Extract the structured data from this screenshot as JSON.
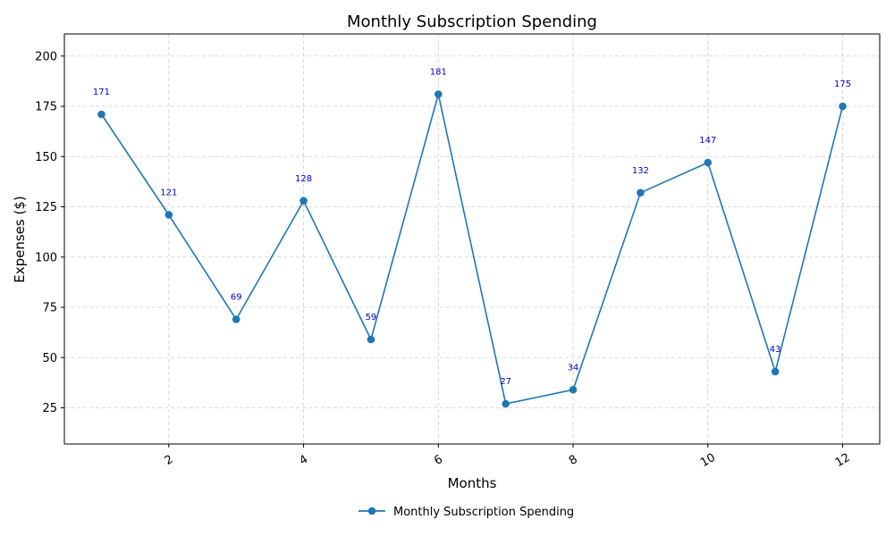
{
  "chart_data": {
    "type": "line",
    "title": "Monthly Subscription Spending",
    "xlabel": "Months",
    "ylabel": "Expenses ($)",
    "x": [
      1,
      2,
      3,
      4,
      5,
      6,
      7,
      8,
      9,
      10,
      11,
      12
    ],
    "series": [
      {
        "name": "Monthly Subscription Spending",
        "values": [
          171,
          121,
          69,
          128,
          59,
          181,
          27,
          34,
          132,
          147,
          43,
          175
        ]
      }
    ],
    "xlim": [
      0.45,
      12.55
    ],
    "ylim": [
      7,
      211
    ],
    "xticks": [
      2,
      4,
      6,
      8,
      10,
      12
    ],
    "yticks": [
      25,
      50,
      75,
      100,
      125,
      150,
      175,
      200
    ],
    "grid": true,
    "legend": "bottom-center",
    "colors": {
      "line": "#1f77b4",
      "labels": "#0000cc"
    }
  }
}
